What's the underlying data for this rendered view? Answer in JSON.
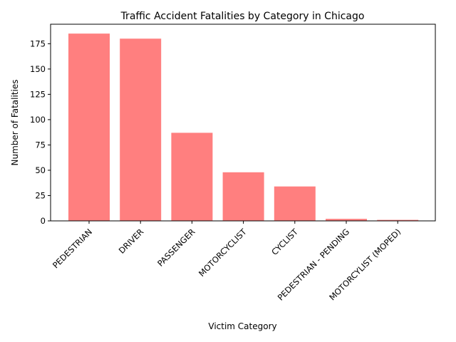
{
  "chart_data": {
    "type": "bar",
    "title": "Traffic Accident Fatalities by Category in Chicago",
    "xlabel": "Victim Category",
    "ylabel": "Number of Fatalities",
    "categories": [
      "PEDESTRIAN",
      "DRIVER",
      "PASSENGER",
      "MOTORCYCLIST",
      "CYCLIST",
      "PEDESTRIAN - PENDING",
      "MOTORCYLIST (MOPED)"
    ],
    "values": [
      185,
      180,
      87,
      48,
      34,
      2,
      1
    ],
    "yticks": [
      0,
      25,
      50,
      75,
      100,
      125,
      150,
      175
    ],
    "ylim": [
      0,
      194.25
    ],
    "bar_color": "#ff7f7f",
    "grid": false,
    "legend": "none"
  }
}
